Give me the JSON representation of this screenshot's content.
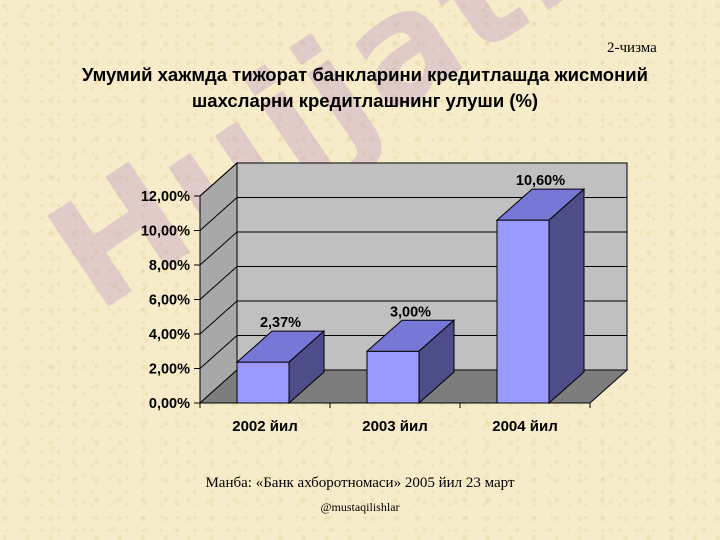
{
  "figure_number": "2-чизма",
  "title_line1": "Умумий хажмда тижорат банкларини кредитлашда жисмоний",
  "title_line2": "шахсларни кредитлашнинг улуши (%)",
  "source": "Манба: «Банк ахборотномаси» 2005 йил 23 март",
  "handle": "@mustaqilishlar",
  "watermark": "Hujjat24",
  "chart_data": {
    "type": "bar",
    "categories": [
      "2002 йил",
      "2003 йил",
      "2004 йил"
    ],
    "values": [
      2.37,
      3.0,
      10.6
    ],
    "value_labels": [
      "2,37%",
      "3,00%",
      "10,60%"
    ],
    "yticks": [
      "0,00%",
      "2,00%",
      "4,00%",
      "6,00%",
      "8,00%",
      "10,00%",
      "12,00%"
    ],
    "ylim": [
      0,
      12
    ],
    "grid": true,
    "legend": "none",
    "colors": {
      "bar_front": "#9999ff",
      "bar_top": "#7777d6",
      "bar_side": "#4d4d8a",
      "wall_back": "#c0c0c0",
      "wall_side": "#a8a8a8",
      "floor": "#7d7d7d"
    }
  }
}
